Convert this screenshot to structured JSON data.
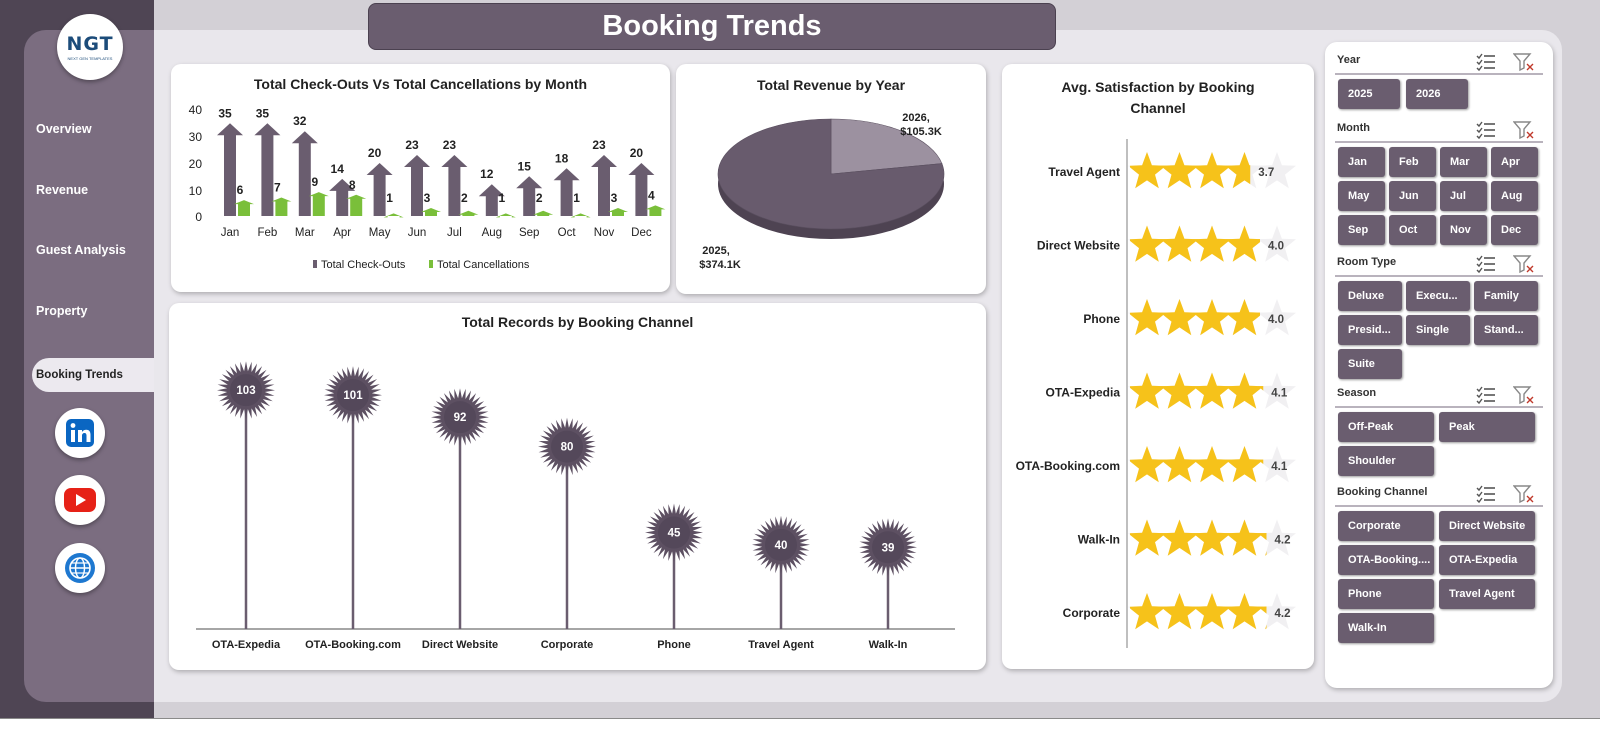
{
  "title": "Booking Trends",
  "logo": {
    "text": "NGT",
    "subtext": "NEXT GEN TEMPLATES"
  },
  "nav": [
    "Overview",
    "Revenue",
    "Guest Analysis",
    "Property",
    "Booking Trends"
  ],
  "social_icons": [
    "linkedin-icon",
    "youtube-icon",
    "globe-icon"
  ],
  "colors": {
    "accent": "#6a5d6f",
    "sidebar": "#7b6d80",
    "star": "#f6c21a",
    "green": "#7abf3a"
  },
  "chart_checkouts": {
    "title": "Total Check-Outs Vs Total Cancellations  by Month",
    "y_ticks": [
      "40",
      "30",
      "20",
      "10",
      "0"
    ],
    "legend": [
      "Total Check-Outs",
      "Total Cancellations"
    ]
  },
  "chart_revenue": {
    "title": "Total Revenue by Year",
    "label_2026": [
      "2026,",
      "$105.3K"
    ],
    "label_2025": [
      "2025,",
      "$374.1K"
    ]
  },
  "chart_records": {
    "title": "Total Records by Booking Channel"
  },
  "chart_satisfaction": {
    "title_line1": "Avg. Satisfaction by Booking",
    "title_line2": "Channel"
  },
  "chart_data": [
    {
      "type": "bar",
      "title": "Total Check-Outs Vs Total Cancellations  by Month",
      "categories": [
        "Jan",
        "Feb",
        "Mar",
        "Apr",
        "May",
        "Jun",
        "Jul",
        "Aug",
        "Sep",
        "Oct",
        "Nov",
        "Dec"
      ],
      "series": [
        {
          "name": "Total Check-Outs",
          "values": [
            35,
            35,
            32,
            14,
            20,
            23,
            23,
            12,
            15,
            18,
            23,
            20
          ]
        },
        {
          "name": "Total Cancellations",
          "values": [
            6,
            7,
            9,
            8,
            1,
            3,
            2,
            1,
            2,
            1,
            3,
            4
          ]
        }
      ],
      "ylim": [
        0,
        40
      ]
    },
    {
      "type": "pie",
      "title": "Total Revenue by Year",
      "categories": [
        "2025",
        "2026"
      ],
      "values": [
        374.1,
        105.3
      ],
      "labels": [
        "$374.1K",
        "$105.3K"
      ]
    },
    {
      "type": "bar",
      "title": "Total Records by Booking Channel",
      "categories": [
        "OTA-Expedia",
        "OTA-Booking.com",
        "Direct Website",
        "Corporate",
        "Phone",
        "Travel Agent",
        "Walk-In"
      ],
      "values": [
        103,
        101,
        92,
        80,
        45,
        40,
        39
      ]
    },
    {
      "type": "bar",
      "title": "Avg. Satisfaction by Booking Channel",
      "categories": [
        "Travel Agent",
        "Direct Website",
        "Phone",
        "OTA-Expedia",
        "OTA-Booking.com",
        "Walk-In",
        "Corporate"
      ],
      "values": [
        3.7,
        4.0,
        4.0,
        4.1,
        4.1,
        4.2,
        4.2
      ],
      "labels": [
        "3.7",
        "4.0",
        "4.0",
        "4.1",
        "4.1",
        "4.2",
        "4.2"
      ],
      "max": 5
    }
  ],
  "slicers": [
    {
      "title": "Year",
      "items": [
        "2025",
        "2026"
      ]
    },
    {
      "title": "Month",
      "items": [
        "Jan",
        "Feb",
        "Mar",
        "Apr",
        "May",
        "Jun",
        "Jul",
        "Aug",
        "Sep",
        "Oct",
        "Nov",
        "Dec"
      ]
    },
    {
      "title": "Room Type",
      "items": [
        "Deluxe",
        "Execu...",
        "Family",
        "Presid...",
        "Single",
        "Stand...",
        "Suite"
      ]
    },
    {
      "title": "Season",
      "items": [
        "Off-Peak",
        "Peak",
        "Shoulder"
      ]
    },
    {
      "title": "Booking Channel",
      "items": [
        "Corporate",
        "Direct Website",
        "OTA-Booking....",
        "OTA-Expedia",
        "Phone",
        "Travel Agent",
        "Walk-In"
      ]
    }
  ]
}
